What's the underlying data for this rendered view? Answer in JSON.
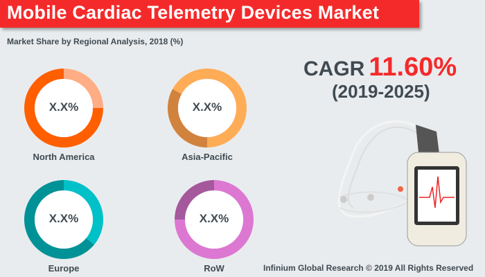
{
  "header": {
    "title": "Mobile Cardiac Telemetry Devices Market"
  },
  "subtitle": "Market Share by Regional Analysis, 2018 (%)",
  "chart_data": [
    {
      "type": "pie",
      "name": "North America",
      "label": "X.X%",
      "slices": [
        {
          "fraction": 0.25,
          "color": "#ffad85"
        },
        {
          "fraction": 0.75,
          "color": "#ff5f00"
        }
      ]
    },
    {
      "type": "pie",
      "name": "Asia-Pacific",
      "label": "X.X%",
      "slices": [
        {
          "fraction": 0.5,
          "color": "#ffac57"
        },
        {
          "fraction": 0.33,
          "color": "#d1823d"
        },
        {
          "fraction": 0.17,
          "color": "#ffac57"
        }
      ]
    },
    {
      "type": "pie",
      "name": "Europe",
      "label": "X.X%",
      "slices": [
        {
          "fraction": 0.36,
          "color": "#00c0c8"
        },
        {
          "fraction": 0.64,
          "color": "#009297"
        }
      ]
    },
    {
      "type": "pie",
      "name": "RoW",
      "label": "X.X%",
      "slices": [
        {
          "fraction": 0.75,
          "color": "#dc78d2"
        },
        {
          "fraction": 0.25,
          "color": "#a5589c"
        }
      ]
    }
  ],
  "cagr": {
    "label": "CAGR",
    "value": "11.60%",
    "years": "(2019-2025)"
  },
  "footer": "Infinium Global Research © 2019 All Rights Reserved"
}
